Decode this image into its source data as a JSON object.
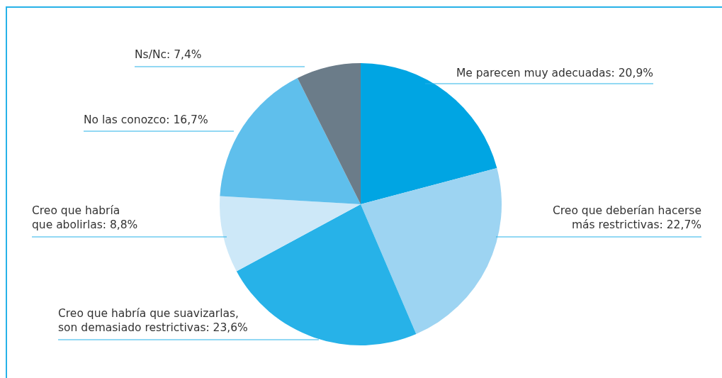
{
  "chart_data": {
    "type": "pie",
    "categories": [
      "Me parecen muy adecuadas",
      "Creo que deberían hacerse\nmás restrictivas",
      "Creo que habría que suavizarlas,\nson demasiado restrictivas",
      "Creo que habría\nque abolirlas",
      "No las conozco",
      "Ns/Nc"
    ],
    "values": [
      20.9,
      22.7,
      23.6,
      8.8,
      16.7,
      7.4
    ],
    "value_labels": [
      "20,9%",
      "22,7%",
      "23,6%",
      "8,8%",
      "16,7%",
      "7,4%"
    ],
    "colors": [
      "#00a5e3",
      "#9dd4f2",
      "#27b2e8",
      "#cde8f8",
      "#5fbfec",
      "#6b7c89"
    ]
  }
}
